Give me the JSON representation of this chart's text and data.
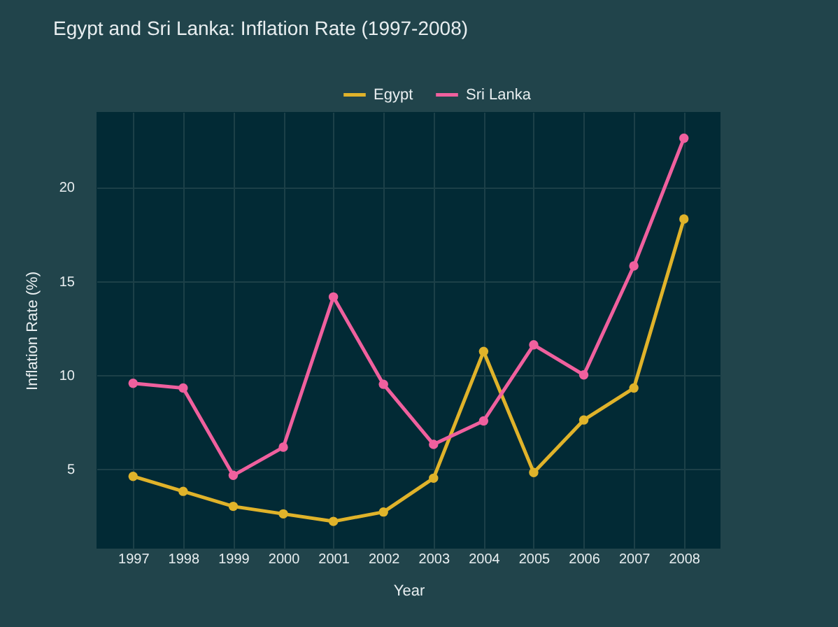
{
  "chart_data": {
    "type": "line",
    "title": "Egypt and Sri Lanka: Inflation Rate (1997-2008)",
    "xlabel": "Year",
    "ylabel": "Inflation Rate (%)",
    "x": [
      1997,
      1998,
      1999,
      2000,
      2001,
      2002,
      2003,
      2004,
      2005,
      2006,
      2007,
      2008
    ],
    "series": [
      {
        "name": "Egypt",
        "color": "#e0b32a",
        "values": [
          4.6,
          3.8,
          3.0,
          2.6,
          2.2,
          2.7,
          4.5,
          11.25,
          4.8,
          7.6,
          9.3,
          18.3
        ]
      },
      {
        "name": "Sri Lanka",
        "color": "#f0609e",
        "values": [
          9.55,
          9.3,
          4.65,
          6.15,
          14.15,
          9.5,
          6.3,
          7.55,
          11.6,
          10.0,
          15.8,
          22.6
        ]
      }
    ],
    "xlim": [
      1996.27,
      2008.73
    ],
    "xticks": [
      1997,
      1998,
      1999,
      2000,
      2001,
      2002,
      2003,
      2004,
      2005,
      2006,
      2007,
      2008
    ],
    "ylim": [
      0.75,
      24.0
    ],
    "yticks": [
      5,
      10,
      15,
      20
    ],
    "grid": true,
    "legend": "top",
    "marker": "circle",
    "line_style": "solid"
  }
}
